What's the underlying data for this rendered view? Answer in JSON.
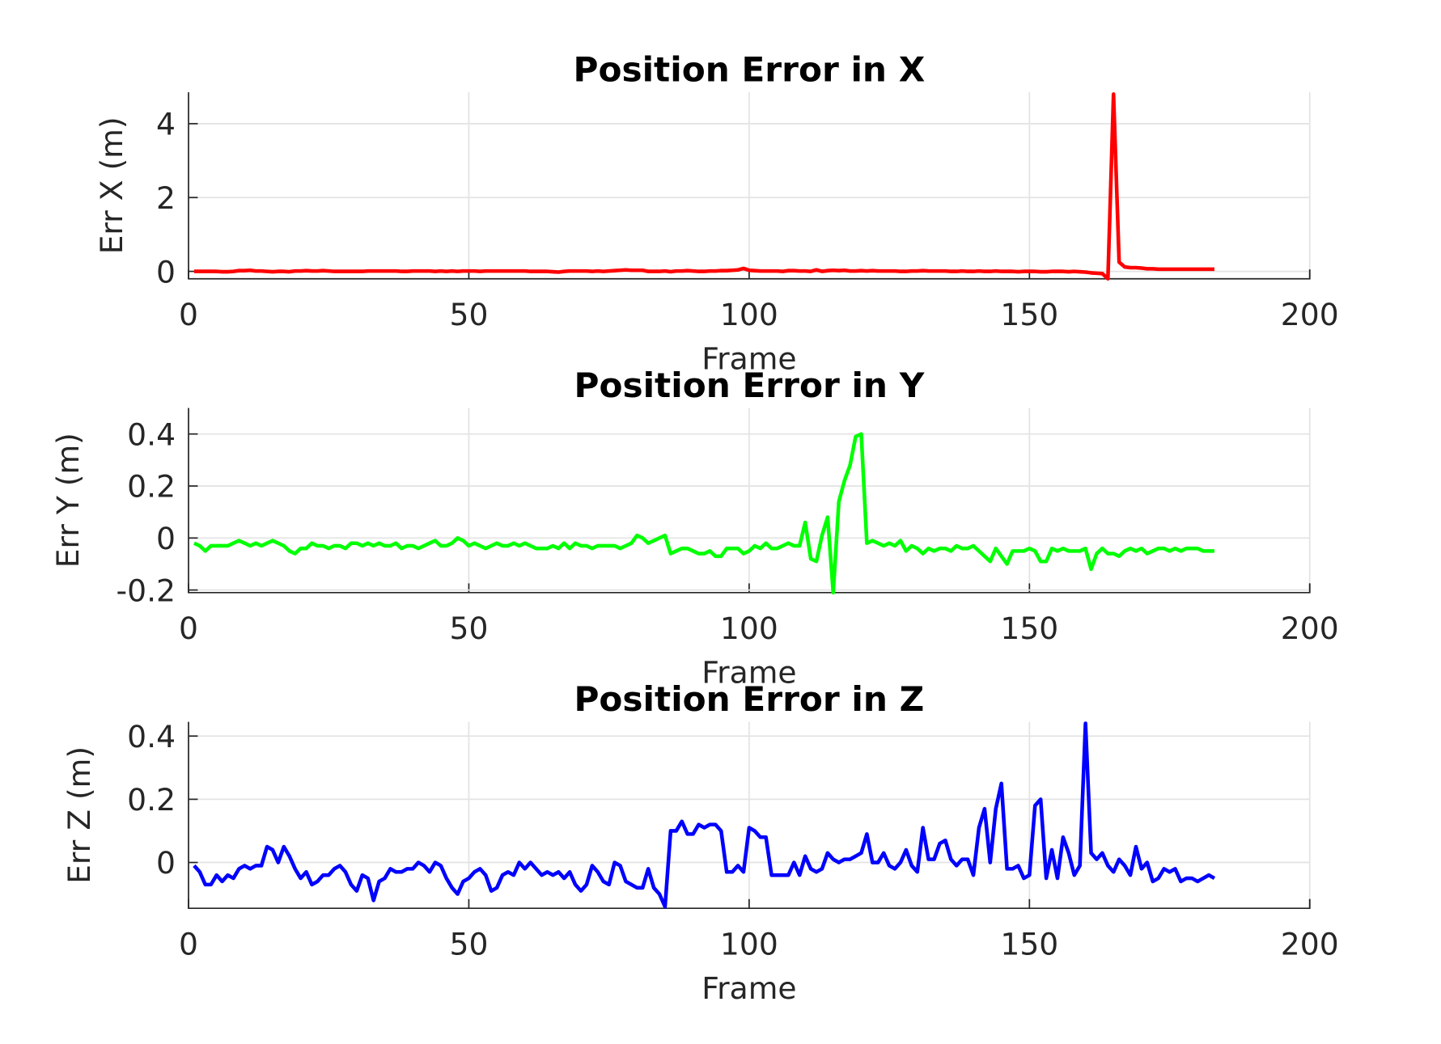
{
  "chart_data": [
    {
      "type": "line",
      "title": "Position Error in X",
      "xlabel": "Frame",
      "ylabel": "Err X (m)",
      "color": "#ff0000",
      "grid": true,
      "xlim": [
        0,
        200
      ],
      "xticks": [
        0,
        50,
        100,
        150,
        200
      ],
      "ylim": [
        -0.2,
        4.85
      ],
      "yticks": [
        0,
        2,
        4
      ],
      "x": [
        1,
        2,
        3,
        4,
        5,
        6,
        7,
        8,
        9,
        10,
        11,
        12,
        13,
        14,
        15,
        16,
        17,
        18,
        19,
        20,
        21,
        22,
        23,
        24,
        25,
        26,
        27,
        28,
        29,
        30,
        31,
        32,
        33,
        34,
        35,
        36,
        37,
        38,
        39,
        40,
        41,
        42,
        43,
        44,
        45,
        46,
        47,
        48,
        49,
        50,
        51,
        52,
        53,
        54,
        55,
        56,
        57,
        58,
        59,
        60,
        61,
        62,
        63,
        64,
        65,
        66,
        67,
        68,
        69,
        70,
        71,
        72,
        73,
        74,
        75,
        76,
        77,
        78,
        79,
        80,
        81,
        82,
        83,
        84,
        85,
        86,
        87,
        88,
        89,
        90,
        91,
        92,
        93,
        94,
        95,
        96,
        97,
        98,
        99,
        100,
        101,
        102,
        103,
        104,
        105,
        106,
        107,
        108,
        109,
        110,
        111,
        112,
        113,
        114,
        115,
        116,
        117,
        118,
        119,
        120,
        121,
        122,
        123,
        124,
        125,
        126,
        127,
        128,
        129,
        130,
        131,
        132,
        133,
        134,
        135,
        136,
        137,
        138,
        139,
        140,
        141,
        142,
        143,
        144,
        145,
        146,
        147,
        148,
        149,
        150,
        151,
        152,
        153,
        154,
        155,
        156,
        157,
        158,
        159,
        160,
        161,
        162,
        163,
        164,
        165,
        166,
        167,
        168,
        169,
        170,
        171,
        172,
        173,
        174,
        175,
        176,
        177,
        178,
        179,
        180,
        181,
        182,
        183
      ],
      "values": [
        0,
        0,
        0,
        0,
        0,
        -0.01,
        -0.01,
        0,
        0.02,
        0.02,
        0.03,
        0.01,
        0.01,
        0,
        -0.01,
        0,
        0,
        -0.01,
        0.01,
        0.01,
        0.02,
        0.01,
        0.01,
        0.02,
        0.01,
        0,
        0,
        0,
        0,
        0,
        0,
        0.01,
        0.01,
        0.01,
        0.01,
        0.01,
        0.01,
        0,
        0,
        0.01,
        0.01,
        0.01,
        0.01,
        0,
        0.01,
        0,
        0.01,
        0,
        0.01,
        0.01,
        0.01,
        0,
        0.01,
        0.01,
        0.01,
        0.01,
        0.01,
        0.01,
        0.01,
        0.01,
        0,
        0,
        0,
        0,
        -0.01,
        -0.02,
        0,
        0.01,
        0.01,
        0.01,
        0.01,
        0,
        0.01,
        0,
        0.01,
        0.02,
        0.03,
        0.04,
        0.03,
        0.03,
        0.03,
        0,
        0,
        0,
        0.01,
        -0.01,
        0.01,
        0.01,
        0.02,
        0.01,
        0,
        0,
        0.01,
        0.01,
        0.02,
        0.02,
        0.03,
        0.04,
        0.08,
        0.03,
        0.02,
        0.01,
        0.01,
        0.01,
        0.01,
        0,
        0.02,
        0.02,
        0.01,
        0.01,
        0,
        0.04,
        0,
        0.02,
        0.03,
        0.02,
        0.03,
        0.01,
        0.01,
        0.02,
        0.01,
        0.02,
        0.01,
        0.01,
        0.01,
        0.01,
        0,
        0,
        0.01,
        0.01,
        0.02,
        0.01,
        0.01,
        0.01,
        0.01,
        0,
        0,
        0.01,
        0,
        0,
        0.01,
        0,
        0,
        0.01,
        0,
        0,
        0,
        -0.01,
        0,
        0,
        0,
        -0.01,
        -0.01,
        0,
        0,
        0,
        -0.01,
        0,
        -0.01,
        -0.02,
        -0.04,
        -0.05,
        -0.06,
        -0.2,
        4.8,
        0.25,
        0.12,
        0.1,
        0.1,
        0.09,
        0.07,
        0.07,
        0.06,
        0.06,
        0.06,
        0.06,
        0.06,
        0.06,
        0.06,
        0.06,
        0.06,
        0.06,
        0.06
      ]
    },
    {
      "type": "line",
      "title": "Position Error in Y",
      "xlabel": "Frame",
      "ylabel": "Err Y (m)",
      "color": "#00ff00",
      "grid": true,
      "xlim": [
        0,
        200
      ],
      "xticks": [
        0,
        50,
        100,
        150,
        200
      ],
      "ylim": [
        -0.21,
        0.5
      ],
      "yticks": [
        -0.2,
        0,
        0.2,
        0.4
      ],
      "x": [
        1,
        2,
        3,
        4,
        5,
        6,
        7,
        8,
        9,
        10,
        11,
        12,
        13,
        14,
        15,
        16,
        17,
        18,
        19,
        20,
        21,
        22,
        23,
        24,
        25,
        26,
        27,
        28,
        29,
        30,
        31,
        32,
        33,
        34,
        35,
        36,
        37,
        38,
        39,
        40,
        41,
        42,
        43,
        44,
        45,
        46,
        47,
        48,
        49,
        50,
        51,
        52,
        53,
        54,
        55,
        56,
        57,
        58,
        59,
        60,
        61,
        62,
        63,
        64,
        65,
        66,
        67,
        68,
        69,
        70,
        71,
        72,
        73,
        74,
        75,
        76,
        77,
        78,
        79,
        80,
        81,
        82,
        83,
        84,
        85,
        86,
        87,
        88,
        89,
        90,
        91,
        92,
        93,
        94,
        95,
        96,
        97,
        98,
        99,
        100,
        101,
        102,
        103,
        104,
        105,
        106,
        107,
        108,
        109,
        110,
        111,
        112,
        113,
        114,
        115,
        116,
        117,
        118,
        119,
        120,
        121,
        122,
        123,
        124,
        125,
        126,
        127,
        128,
        129,
        130,
        131,
        132,
        133,
        134,
        135,
        136,
        137,
        138,
        139,
        140,
        141,
        142,
        143,
        144,
        145,
        146,
        147,
        148,
        149,
        150,
        151,
        152,
        153,
        154,
        155,
        156,
        157,
        158,
        159,
        160,
        161,
        162,
        163,
        164,
        165,
        166,
        167,
        168,
        169,
        170,
        171,
        172,
        173,
        174,
        175,
        176,
        177,
        178,
        179,
        180,
        181,
        182,
        183
      ],
      "values": [
        -0.02,
        -0.03,
        -0.05,
        -0.03,
        -0.03,
        -0.03,
        -0.03,
        -0.02,
        -0.01,
        -0.02,
        -0.03,
        -0.02,
        -0.03,
        -0.02,
        -0.01,
        -0.02,
        -0.03,
        -0.05,
        -0.06,
        -0.04,
        -0.04,
        -0.02,
        -0.03,
        -0.03,
        -0.04,
        -0.03,
        -0.03,
        -0.04,
        -0.02,
        -0.02,
        -0.03,
        -0.02,
        -0.03,
        -0.02,
        -0.03,
        -0.03,
        -0.02,
        -0.04,
        -0.03,
        -0.03,
        -0.04,
        -0.03,
        -0.02,
        -0.01,
        -0.03,
        -0.03,
        -0.02,
        0,
        -0.01,
        -0.03,
        -0.02,
        -0.03,
        -0.04,
        -0.03,
        -0.02,
        -0.03,
        -0.03,
        -0.02,
        -0.03,
        -0.02,
        -0.03,
        -0.04,
        -0.04,
        -0.04,
        -0.03,
        -0.04,
        -0.02,
        -0.04,
        -0.02,
        -0.03,
        -0.03,
        -0.04,
        -0.03,
        -0.03,
        -0.03,
        -0.03,
        -0.04,
        -0.03,
        -0.02,
        0.01,
        0,
        -0.02,
        -0.01,
        0,
        0.01,
        -0.06,
        -0.05,
        -0.04,
        -0.04,
        -0.05,
        -0.06,
        -0.06,
        -0.05,
        -0.07,
        -0.07,
        -0.04,
        -0.04,
        -0.04,
        -0.06,
        -0.05,
        -0.03,
        -0.04,
        -0.02,
        -0.04,
        -0.04,
        -0.03,
        -0.02,
        -0.03,
        -0.03,
        0.06,
        -0.08,
        -0.09,
        0.01,
        0.08,
        -0.21,
        0.14,
        0.22,
        0.28,
        0.39,
        0.4,
        -0.02,
        -0.01,
        -0.02,
        -0.03,
        -0.02,
        -0.03,
        -0.01,
        -0.05,
        -0.03,
        -0.04,
        -0.06,
        -0.04,
        -0.05,
        -0.04,
        -0.04,
        -0.05,
        -0.03,
        -0.04,
        -0.04,
        -0.03,
        -0.05,
        -0.07,
        -0.09,
        -0.04,
        -0.07,
        -0.1,
        -0.05,
        -0.05,
        -0.05,
        -0.04,
        -0.05,
        -0.09,
        -0.09,
        -0.04,
        -0.05,
        -0.04,
        -0.05,
        -0.05,
        -0.05,
        -0.04,
        -0.12,
        -0.06,
        -0.04,
        -0.06,
        -0.06,
        -0.07,
        -0.05,
        -0.04,
        -0.05,
        -0.04,
        -0.06,
        -0.05,
        -0.04,
        -0.04,
        -0.05,
        -0.04,
        -0.05,
        -0.04,
        -0.04,
        -0.04,
        -0.05,
        -0.05,
        -0.05
      ]
    },
    {
      "type": "line",
      "title": "Position Error in Z",
      "xlabel": "Frame",
      "ylabel": "Err Z (m)",
      "color": "#0000ff",
      "grid": true,
      "xlim": [
        0,
        200
      ],
      "xticks": [
        0,
        50,
        100,
        150,
        200
      ],
      "ylim": [
        -0.145,
        0.445
      ],
      "yticks": [
        0,
        0.2,
        0.4
      ],
      "x": [
        1,
        2,
        3,
        4,
        5,
        6,
        7,
        8,
        9,
        10,
        11,
        12,
        13,
        14,
        15,
        16,
        17,
        18,
        19,
        20,
        21,
        22,
        23,
        24,
        25,
        26,
        27,
        28,
        29,
        30,
        31,
        32,
        33,
        34,
        35,
        36,
        37,
        38,
        39,
        40,
        41,
        42,
        43,
        44,
        45,
        46,
        47,
        48,
        49,
        50,
        51,
        52,
        53,
        54,
        55,
        56,
        57,
        58,
        59,
        60,
        61,
        62,
        63,
        64,
        65,
        66,
        67,
        68,
        69,
        70,
        71,
        72,
        73,
        74,
        75,
        76,
        77,
        78,
        79,
        80,
        81,
        82,
        83,
        84,
        85,
        86,
        87,
        88,
        89,
        90,
        91,
        92,
        93,
        94,
        95,
        96,
        97,
        98,
        99,
        100,
        101,
        102,
        103,
        104,
        105,
        106,
        107,
        108,
        109,
        110,
        111,
        112,
        113,
        114,
        115,
        116,
        117,
        118,
        119,
        120,
        121,
        122,
        123,
        124,
        125,
        126,
        127,
        128,
        129,
        130,
        131,
        132,
        133,
        134,
        135,
        136,
        137,
        138,
        139,
        140,
        141,
        142,
        143,
        144,
        145,
        146,
        147,
        148,
        149,
        150,
        151,
        152,
        153,
        154,
        155,
        156,
        157,
        158,
        159,
        160,
        161,
        162,
        163,
        164,
        165,
        166,
        167,
        168,
        169,
        170,
        171,
        172,
        173,
        174,
        175,
        176,
        177,
        178,
        179,
        180,
        181,
        182,
        183
      ],
      "values": [
        -0.01,
        -0.03,
        -0.07,
        -0.07,
        -0.04,
        -0.06,
        -0.04,
        -0.05,
        -0.02,
        -0.01,
        -0.02,
        -0.01,
        -0.01,
        0.05,
        0.04,
        0,
        0.05,
        0.02,
        -0.02,
        -0.05,
        -0.03,
        -0.07,
        -0.06,
        -0.04,
        -0.04,
        -0.02,
        -0.01,
        -0.03,
        -0.07,
        -0.09,
        -0.04,
        -0.05,
        -0.12,
        -0.06,
        -0.05,
        -0.02,
        -0.03,
        -0.03,
        -0.02,
        -0.02,
        0,
        -0.01,
        -0.03,
        0,
        -0.01,
        -0.05,
        -0.08,
        -0.1,
        -0.06,
        -0.05,
        -0.03,
        -0.02,
        -0.04,
        -0.09,
        -0.08,
        -0.04,
        -0.03,
        -0.04,
        0,
        -0.02,
        0,
        -0.02,
        -0.04,
        -0.03,
        -0.04,
        -0.03,
        -0.05,
        -0.03,
        -0.07,
        -0.09,
        -0.07,
        -0.01,
        -0.03,
        -0.06,
        -0.07,
        0,
        -0.01,
        -0.06,
        -0.07,
        -0.08,
        -0.08,
        -0.02,
        -0.08,
        -0.1,
        -0.14,
        0.1,
        0.1,
        0.13,
        0.09,
        0.09,
        0.12,
        0.11,
        0.12,
        0.12,
        0.1,
        -0.03,
        -0.03,
        -0.01,
        -0.03,
        0.11,
        0.1,
        0.08,
        0.08,
        -0.04,
        -0.04,
        -0.04,
        -0.04,
        0,
        -0.04,
        0.02,
        -0.02,
        -0.03,
        -0.02,
        0.03,
        0.01,
        0,
        0.01,
        0.01,
        0.02,
        0.03,
        0.09,
        0,
        0,
        0.03,
        -0.01,
        -0.02,
        0,
        0.04,
        -0.01,
        -0.03,
        0.11,
        0.01,
        0.01,
        0.06,
        0.07,
        0.01,
        -0.01,
        0.01,
        0.01,
        -0.04,
        0.11,
        0.17,
        0,
        0.17,
        0.25,
        -0.02,
        -0.02,
        -0.01,
        -0.05,
        -0.04,
        0.18,
        0.2,
        -0.05,
        0.04,
        -0.05,
        0.08,
        0.03,
        -0.04,
        -0.01,
        0.44,
        0.03,
        0.01,
        0.03,
        -0.01,
        -0.03,
        0.01,
        -0.01,
        -0.04,
        0.05,
        -0.02,
        0,
        -0.06,
        -0.05,
        -0.02,
        -0.03,
        -0.02,
        -0.06,
        -0.05,
        -0.05,
        -0.06,
        -0.05,
        -0.04,
        -0.05
      ]
    }
  ]
}
